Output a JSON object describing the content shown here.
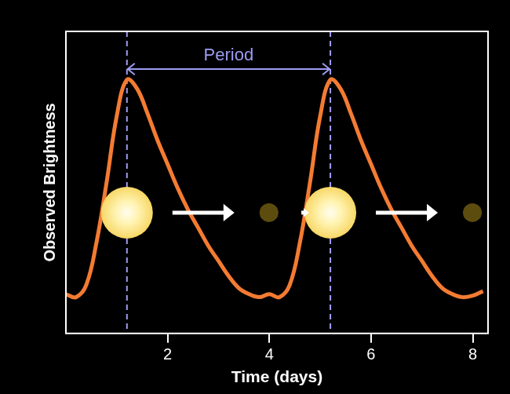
{
  "chart_data": {
    "type": "line",
    "x_label": "Time (days)",
    "y_label": "Observed Brightness",
    "x": [
      0,
      0.2,
      0.4,
      0.6,
      0.8,
      1.0,
      1.2,
      1.4,
      1.6,
      1.8,
      2.0,
      2.2,
      2.4,
      2.6,
      2.8,
      3.0,
      3.2,
      3.4,
      3.6,
      3.8,
      4.0,
      4.2,
      4.4,
      4.6,
      4.8,
      5.0,
      5.2,
      5.4,
      5.6,
      5.8,
      6.0,
      6.2,
      6.4,
      6.6,
      6.8,
      7.0,
      7.2,
      7.4,
      7.6,
      7.8,
      8.0,
      8.2
    ],
    "values": [
      1.3,
      1.2,
      1.6,
      3.0,
      5.0,
      7.2,
      8.4,
      8.1,
      7.3,
      6.4,
      5.6,
      4.8,
      4.1,
      3.5,
      2.9,
      2.4,
      1.9,
      1.5,
      1.3,
      1.2,
      1.3,
      1.2,
      1.6,
      3.0,
      5.0,
      7.2,
      8.4,
      8.1,
      7.3,
      6.4,
      5.6,
      4.8,
      4.1,
      3.5,
      2.9,
      2.4,
      1.9,
      1.5,
      1.3,
      1.2,
      1.25,
      1.4
    ],
    "color": "#f47b32",
    "xlim": [
      0,
      8.3
    ],
    "xticks": [
      2,
      4,
      6,
      8
    ],
    "ylim": [
      0,
      10
    ],
    "tick_labels": "x",
    "grid": false,
    "annotation": {
      "text": "Period",
      "from": 1.2,
      "to": 5.2
    }
  }
}
